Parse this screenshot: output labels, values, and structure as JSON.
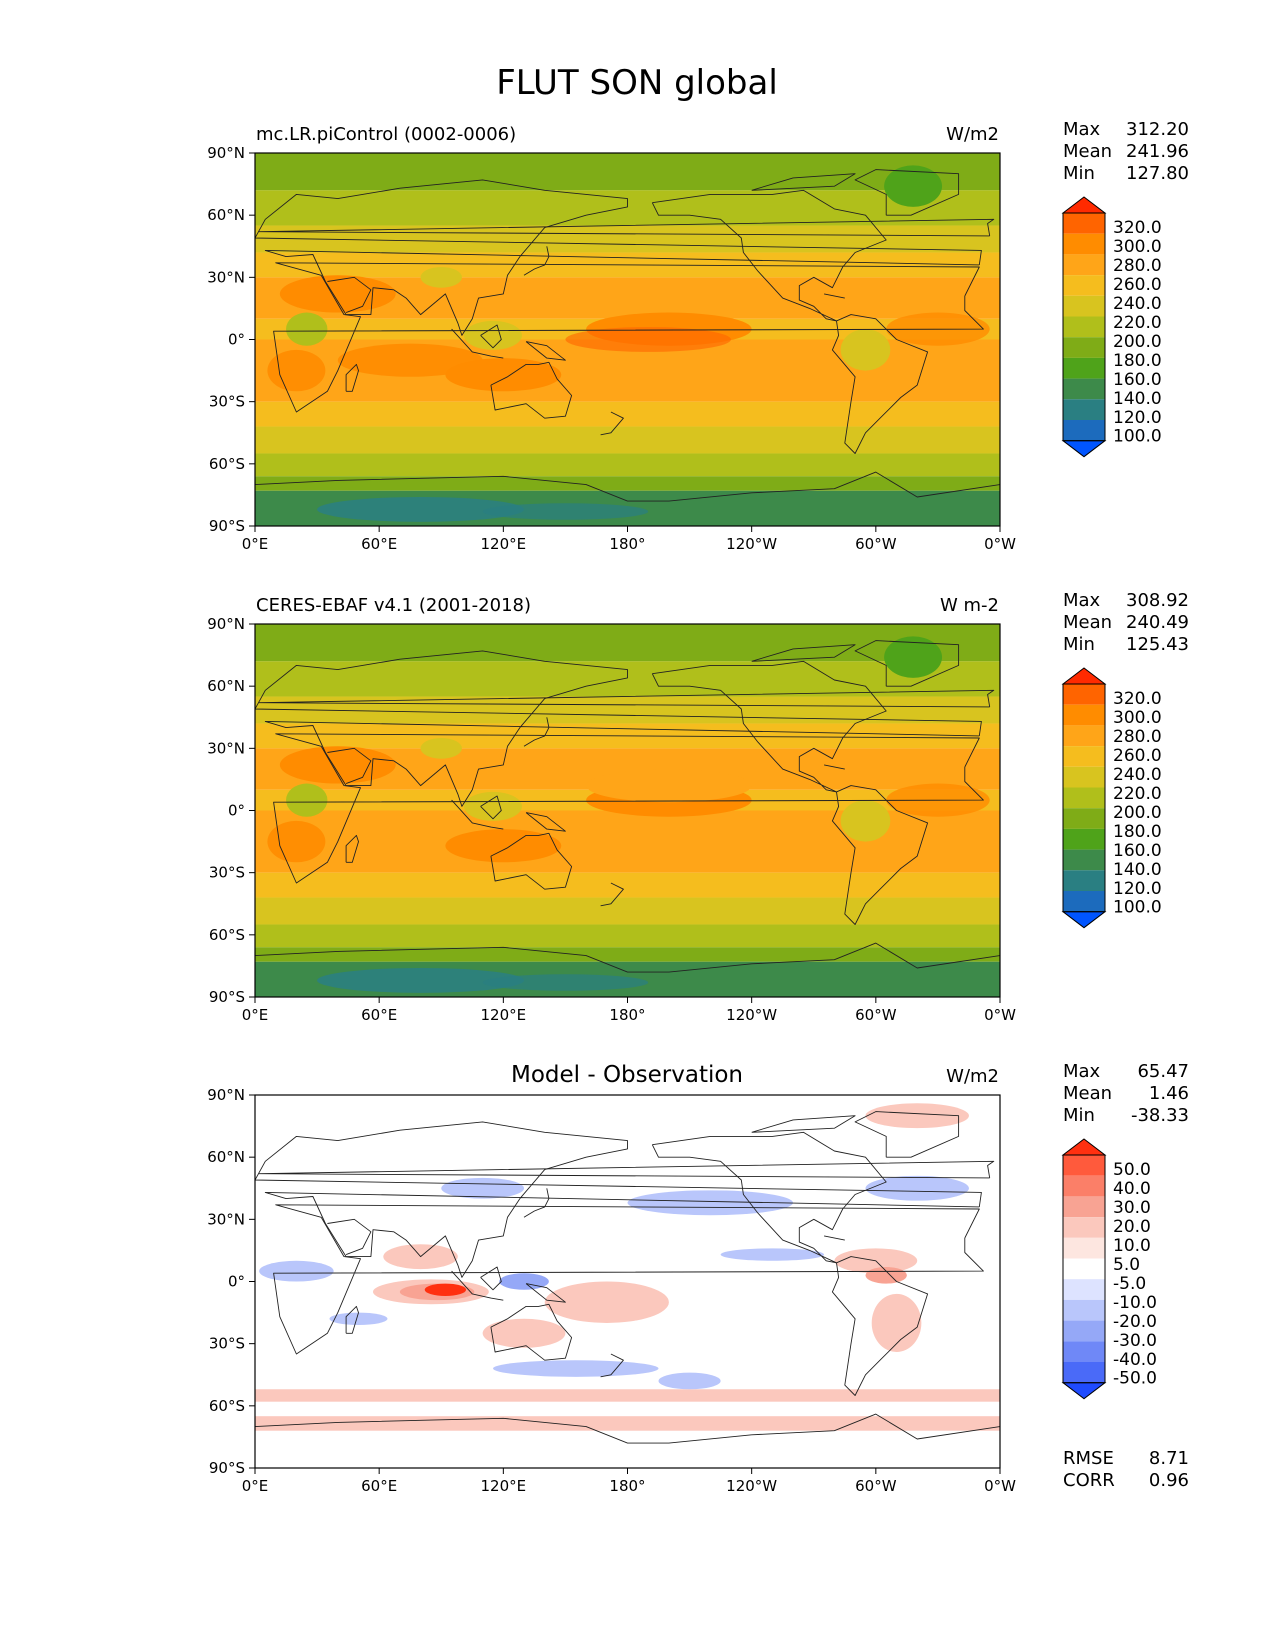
{
  "figure": {
    "title": "FLUT SON global"
  },
  "axes": {
    "lat_ticks": [
      "90°N",
      "60°N",
      "30°N",
      "0°",
      "30°S",
      "60°S",
      "90°S"
    ],
    "lon_ticks": [
      "0°E",
      "60°E",
      "120°E",
      "180°",
      "120°W",
      "60°W",
      "0°W"
    ]
  },
  "stat_labels": {
    "max": "Max",
    "mean": "Mean",
    "min": "Min",
    "rmse": "RMSE",
    "corr": "CORR"
  },
  "panels": [
    {
      "title_left": "mc.LR.piControl (0002-0006)",
      "title_center": "",
      "units": "W/m2",
      "stats": {
        "max": "312.20",
        "mean": "241.96",
        "min": "127.80"
      },
      "colorbar": {
        "levels": [
          "320.0",
          "300.0",
          "280.0",
          "260.0",
          "240.0",
          "220.0",
          "200.0",
          "180.0",
          "160.0",
          "140.0",
          "120.0",
          "100.0"
        ],
        "colors": [
          "#ff2a00",
          "#ff6400",
          "#ff8c00",
          "#ffa518",
          "#f5bd1e",
          "#d8c41f",
          "#b0bf1b",
          "#7fac17",
          "#4fa31a",
          "#3d8a4a",
          "#2a7f82",
          "#1c6bbd",
          "#0055ff"
        ]
      }
    },
    {
      "title_left": "CERES-EBAF v4.1 (2001-2018)",
      "title_center": "",
      "units": "W m-2",
      "stats": {
        "max": "308.92",
        "mean": "240.49",
        "min": "125.43"
      },
      "colorbar": {
        "levels": [
          "320.0",
          "300.0",
          "280.0",
          "260.0",
          "240.0",
          "220.0",
          "200.0",
          "180.0",
          "160.0",
          "140.0",
          "120.0",
          "100.0"
        ],
        "colors": [
          "#ff2a00",
          "#ff6400",
          "#ff8c00",
          "#ffa518",
          "#f5bd1e",
          "#d8c41f",
          "#b0bf1b",
          "#7fac17",
          "#4fa31a",
          "#3d8a4a",
          "#2a7f82",
          "#1c6bbd",
          "#0055ff"
        ]
      }
    },
    {
      "title_left": "",
      "title_center": "Model - Observation",
      "units": "W/m2",
      "stats": {
        "max": "65.47",
        "mean": "1.46",
        "min": "-38.33"
      },
      "extra_stats": {
        "rmse": "8.71",
        "corr": "0.96"
      },
      "colorbar": {
        "levels": [
          "50.0",
          "40.0",
          "30.0",
          "20.0",
          "10.0",
          "5.0",
          "-5.0",
          "-10.0",
          "-20.0",
          "-30.0",
          "-40.0",
          "-50.0"
        ],
        "colors": [
          "#ff3010",
          "#ff5a3c",
          "#fb7f68",
          "#f8a393",
          "#fbc8bd",
          "#fde6e0",
          "#ffffff",
          "#dde3ff",
          "#b9c6fb",
          "#95a8f7",
          "#6f88f7",
          "#4a6af8",
          "#1f4bff"
        ]
      }
    }
  ],
  "map_colors": {
    "ocean_trop": "#f5bd1e",
    "warm": "#ffa518",
    "hot": "#ff8c00",
    "hotter": "#ff6400",
    "mid": "#d8c41f",
    "cool": "#b0bf1b",
    "cold": "#7fac17",
    "colder": "#4fa31a",
    "polar": "#3d8a4a",
    "teal": "#2a7f82",
    "diff_red": "#ff3010",
    "diff_pink": "#f8a393",
    "diff_lightpink": "#fbc8bd",
    "diff_blue": "#95a8f7",
    "diff_lightblue": "#b9c6fb"
  }
}
